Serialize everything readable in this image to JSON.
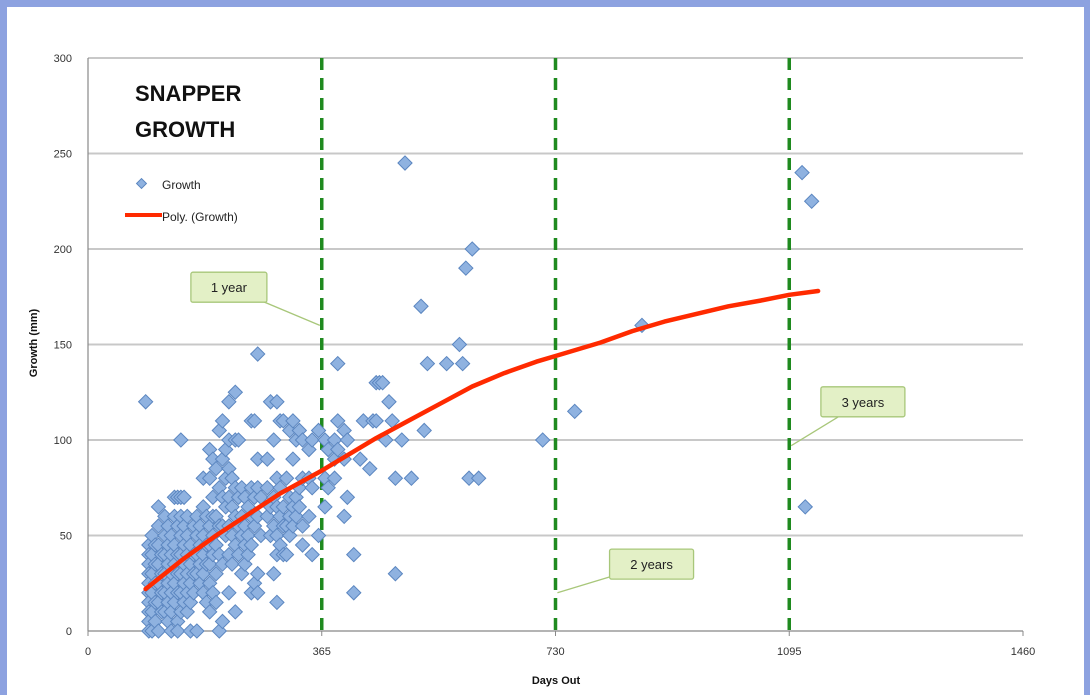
{
  "chart_data": {
    "type": "scatter",
    "title": [
      "SNAPPER",
      "GROWTH"
    ],
    "xlabel": "Days Out",
    "ylabel": "Growth (mm)",
    "xlim": [
      0,
      1460
    ],
    "ylim": [
      0,
      300
    ],
    "xticks": [
      0,
      365,
      730,
      1095,
      1460
    ],
    "yticks": [
      0,
      50,
      100,
      150,
      200,
      250,
      300
    ],
    "grid": "horizontal",
    "legend_position": "top-left",
    "legend": [
      {
        "label": "Growth",
        "kind": "marker"
      },
      {
        "label": "Poly. (Growth)",
        "kind": "line"
      }
    ],
    "colors": {
      "marker_fill": "#8fb2e0",
      "marker_stroke": "#5b86c0",
      "trend": "#ff2a00",
      "vline": "#1f8a1f",
      "callout_fill": "#e3f0c6",
      "callout_stroke": "#a8c77a",
      "grid": "#c8c8c8",
      "frame": "#8da2e0"
    },
    "vertical_lines": [
      365,
      730,
      1095
    ],
    "annotations": [
      {
        "text": "1 year",
        "x": 220,
        "y": 180,
        "point_x": 362,
        "point_y": 160
      },
      {
        "text": "2 years",
        "x": 880,
        "y": 35,
        "point_x": 733,
        "point_y": 20
      },
      {
        "text": "3 years",
        "x": 1210,
        "y": 120,
        "point_x": 1098,
        "point_y": 97
      }
    ],
    "series": [
      {
        "name": "Growth",
        "kind": "scatter",
        "points": [
          [
            90,
            120
          ],
          [
            95,
            45
          ],
          [
            95,
            40
          ],
          [
            95,
            35
          ],
          [
            95,
            30
          ],
          [
            95,
            25
          ],
          [
            95,
            20
          ],
          [
            95,
            15
          ],
          [
            95,
            10
          ],
          [
            95,
            5
          ],
          [
            95,
            0
          ],
          [
            100,
            50
          ],
          [
            100,
            40
          ],
          [
            100,
            30
          ],
          [
            100,
            20
          ],
          [
            100,
            10
          ],
          [
            100,
            0
          ],
          [
            105,
            45
          ],
          [
            105,
            35
          ],
          [
            105,
            25
          ],
          [
            105,
            15
          ],
          [
            105,
            5
          ],
          [
            110,
            65
          ],
          [
            110,
            55
          ],
          [
            110,
            45
          ],
          [
            110,
            35
          ],
          [
            110,
            25
          ],
          [
            110,
            15
          ],
          [
            110,
            0
          ],
          [
            115,
            40
          ],
          [
            115,
            30
          ],
          [
            115,
            20
          ],
          [
            115,
            10
          ],
          [
            120,
            60
          ],
          [
            120,
            50
          ],
          [
            120,
            40
          ],
          [
            120,
            30
          ],
          [
            120,
            20
          ],
          [
            120,
            10
          ],
          [
            125,
            55
          ],
          [
            125,
            45
          ],
          [
            125,
            35
          ],
          [
            125,
            25
          ],
          [
            125,
            15
          ],
          [
            125,
            5
          ],
          [
            130,
            50
          ],
          [
            130,
            40
          ],
          [
            130,
            30
          ],
          [
            130,
            20
          ],
          [
            130,
            10
          ],
          [
            130,
            0
          ],
          [
            135,
            70
          ],
          [
            135,
            60
          ],
          [
            135,
            45
          ],
          [
            135,
            35
          ],
          [
            135,
            25
          ],
          [
            135,
            15
          ],
          [
            140,
            70
          ],
          [
            140,
            55
          ],
          [
            140,
            40
          ],
          [
            140,
            30
          ],
          [
            140,
            20
          ],
          [
            140,
            5
          ],
          [
            140,
            0
          ],
          [
            145,
            100
          ],
          [
            145,
            70
          ],
          [
            145,
            60
          ],
          [
            145,
            50
          ],
          [
            145,
            40
          ],
          [
            145,
            30
          ],
          [
            145,
            20
          ],
          [
            145,
            10
          ],
          [
            150,
            70
          ],
          [
            150,
            55
          ],
          [
            150,
            45
          ],
          [
            150,
            35
          ],
          [
            150,
            25
          ],
          [
            150,
            15
          ],
          [
            155,
            60
          ],
          [
            155,
            50
          ],
          [
            155,
            40
          ],
          [
            155,
            30
          ],
          [
            155,
            20
          ],
          [
            155,
            10
          ],
          [
            160,
            45
          ],
          [
            160,
            35
          ],
          [
            160,
            25
          ],
          [
            160,
            15
          ],
          [
            160,
            0
          ],
          [
            165,
            55
          ],
          [
            165,
            40
          ],
          [
            165,
            30
          ],
          [
            165,
            20
          ],
          [
            170,
            60
          ],
          [
            170,
            50
          ],
          [
            170,
            40
          ],
          [
            170,
            30
          ],
          [
            170,
            0
          ],
          [
            175,
            55
          ],
          [
            175,
            45
          ],
          [
            175,
            35
          ],
          [
            175,
            25
          ],
          [
            180,
            80
          ],
          [
            180,
            65
          ],
          [
            180,
            50
          ],
          [
            180,
            40
          ],
          [
            180,
            30
          ],
          [
            180,
            20
          ],
          [
            185,
            60
          ],
          [
            185,
            45
          ],
          [
            185,
            35
          ],
          [
            185,
            15
          ],
          [
            190,
            95
          ],
          [
            190,
            80
          ],
          [
            190,
            55
          ],
          [
            190,
            45
          ],
          [
            190,
            35
          ],
          [
            190,
            25
          ],
          [
            190,
            10
          ],
          [
            195,
            90
          ],
          [
            195,
            70
          ],
          [
            195,
            60
          ],
          [
            195,
            50
          ],
          [
            195,
            40
          ],
          [
            195,
            20
          ],
          [
            200,
            85
          ],
          [
            200,
            60
          ],
          [
            200,
            45
          ],
          [
            200,
            30
          ],
          [
            200,
            15
          ],
          [
            205,
            105
          ],
          [
            205,
            75
          ],
          [
            205,
            55
          ],
          [
            205,
            40
          ],
          [
            205,
            0
          ],
          [
            210,
            110
          ],
          [
            210,
            90
          ],
          [
            210,
            70
          ],
          [
            210,
            55
          ],
          [
            210,
            35
          ],
          [
            210,
            5
          ],
          [
            215,
            95
          ],
          [
            215,
            80
          ],
          [
            215,
            65
          ],
          [
            215,
            50
          ],
          [
            220,
            120
          ],
          [
            220,
            100
          ],
          [
            220,
            85
          ],
          [
            220,
            70
          ],
          [
            220,
            55
          ],
          [
            220,
            40
          ],
          [
            220,
            20
          ],
          [
            225,
            80
          ],
          [
            225,
            65
          ],
          [
            225,
            50
          ],
          [
            225,
            35
          ],
          [
            230,
            125
          ],
          [
            230,
            100
          ],
          [
            230,
            75
          ],
          [
            230,
            60
          ],
          [
            230,
            45
          ],
          [
            230,
            10
          ],
          [
            235,
            100
          ],
          [
            235,
            70
          ],
          [
            235,
            55
          ],
          [
            235,
            40
          ],
          [
            240,
            75
          ],
          [
            240,
            60
          ],
          [
            240,
            50
          ],
          [
            240,
            30
          ],
          [
            245,
            70
          ],
          [
            245,
            55
          ],
          [
            245,
            45
          ],
          [
            245,
            35
          ],
          [
            250,
            65
          ],
          [
            250,
            50
          ],
          [
            250,
            40
          ],
          [
            255,
            110
          ],
          [
            255,
            75
          ],
          [
            255,
            60
          ],
          [
            255,
            45
          ],
          [
            255,
            20
          ],
          [
            260,
            110
          ],
          [
            260,
            70
          ],
          [
            260,
            55
          ],
          [
            260,
            25
          ],
          [
            265,
            145
          ],
          [
            265,
            90
          ],
          [
            265,
            75
          ],
          [
            265,
            60
          ],
          [
            265,
            30
          ],
          [
            265,
            20
          ],
          [
            270,
            70
          ],
          [
            270,
            50
          ],
          [
            280,
            90
          ],
          [
            280,
            75
          ],
          [
            280,
            60
          ],
          [
            285,
            120
          ],
          [
            285,
            65
          ],
          [
            285,
            50
          ],
          [
            290,
            100
          ],
          [
            290,
            70
          ],
          [
            290,
            55
          ],
          [
            290,
            30
          ],
          [
            295,
            120
          ],
          [
            295,
            80
          ],
          [
            295,
            65
          ],
          [
            295,
            50
          ],
          [
            295,
            40
          ],
          [
            295,
            15
          ],
          [
            300,
            110
          ],
          [
            300,
            75
          ],
          [
            300,
            60
          ],
          [
            300,
            45
          ],
          [
            305,
            110
          ],
          [
            305,
            65
          ],
          [
            305,
            55
          ],
          [
            305,
            40
          ],
          [
            310,
            80
          ],
          [
            310,
            55
          ],
          [
            310,
            40
          ],
          [
            315,
            105
          ],
          [
            315,
            70
          ],
          [
            315,
            60
          ],
          [
            315,
            50
          ],
          [
            320,
            110
          ],
          [
            320,
            90
          ],
          [
            320,
            65
          ],
          [
            320,
            55
          ],
          [
            325,
            100
          ],
          [
            325,
            70
          ],
          [
            325,
            60
          ],
          [
            330,
            105
          ],
          [
            330,
            75
          ],
          [
            330,
            65
          ],
          [
            335,
            100
          ],
          [
            335,
            80
          ],
          [
            335,
            55
          ],
          [
            335,
            45
          ],
          [
            345,
            95
          ],
          [
            345,
            80
          ],
          [
            345,
            60
          ],
          [
            350,
            100
          ],
          [
            350,
            75
          ],
          [
            350,
            40
          ],
          [
            360,
            105
          ],
          [
            360,
            50
          ],
          [
            370,
            100
          ],
          [
            370,
            80
          ],
          [
            370,
            65
          ],
          [
            375,
            95
          ],
          [
            375,
            75
          ],
          [
            385,
            100
          ],
          [
            385,
            90
          ],
          [
            385,
            80
          ],
          [
            390,
            140
          ],
          [
            390,
            110
          ],
          [
            390,
            95
          ],
          [
            400,
            105
          ],
          [
            400,
            90
          ],
          [
            400,
            60
          ],
          [
            405,
            100
          ],
          [
            405,
            70
          ],
          [
            415,
            40
          ],
          [
            415,
            20
          ],
          [
            425,
            90
          ],
          [
            430,
            110
          ],
          [
            440,
            85
          ],
          [
            445,
            110
          ],
          [
            450,
            130
          ],
          [
            450,
            110
          ],
          [
            455,
            130
          ],
          [
            460,
            130
          ],
          [
            465,
            100
          ],
          [
            470,
            120
          ],
          [
            475,
            110
          ],
          [
            480,
            80
          ],
          [
            480,
            30
          ],
          [
            490,
            100
          ],
          [
            495,
            245
          ],
          [
            505,
            80
          ],
          [
            520,
            170
          ],
          [
            525,
            105
          ],
          [
            530,
            140
          ],
          [
            560,
            140
          ],
          [
            580,
            150
          ],
          [
            585,
            140
          ],
          [
            590,
            190
          ],
          [
            595,
            80
          ],
          [
            600,
            200
          ],
          [
            610,
            80
          ],
          [
            710,
            100
          ],
          [
            760,
            115
          ],
          [
            865,
            160
          ],
          [
            1115,
            240
          ],
          [
            1120,
            65
          ],
          [
            1130,
            225
          ]
        ]
      },
      {
        "name": "Poly. (Growth)",
        "kind": "trendline",
        "points": [
          [
            90,
            22
          ],
          [
            150,
            38
          ],
          [
            200,
            50
          ],
          [
            250,
            61
          ],
          [
            300,
            72
          ],
          [
            365,
            84
          ],
          [
            400,
            91
          ],
          [
            450,
            101
          ],
          [
            500,
            110
          ],
          [
            550,
            119
          ],
          [
            600,
            128
          ],
          [
            650,
            135
          ],
          [
            700,
            141
          ],
          [
            730,
            144
          ],
          [
            800,
            151
          ],
          [
            850,
            157
          ],
          [
            900,
            162
          ],
          [
            950,
            166
          ],
          [
            1000,
            170
          ],
          [
            1050,
            173
          ],
          [
            1095,
            176
          ],
          [
            1140,
            178
          ]
        ]
      }
    ]
  }
}
